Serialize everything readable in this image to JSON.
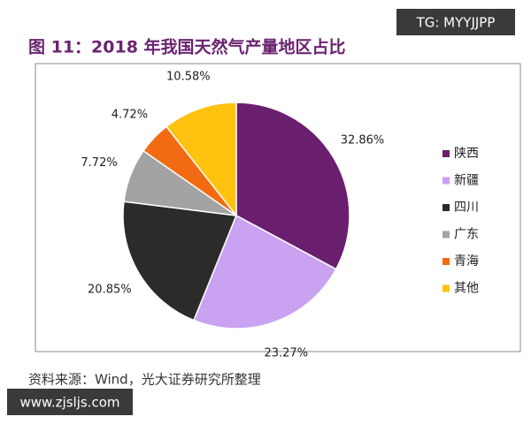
{
  "chart_data": {
    "type": "pie",
    "title": "图 11：2018 年我国天然气产量地区占比",
    "categories": [
      "陕西",
      "新疆",
      "四川",
      "广东",
      "青海",
      "其他"
    ],
    "values": [
      32.86,
      23.27,
      20.85,
      7.72,
      4.72,
      10.58
    ],
    "value_labels": [
      "32.86%",
      "23.27%",
      "20.85%",
      "7.72%",
      "4.72%",
      "10.58%"
    ],
    "colors": [
      "#6a1f6e",
      "#c9a2f2",
      "#2b2b2b",
      "#a3a3a3",
      "#f26b12",
      "#ffc20e"
    ],
    "legend": "right",
    "source": "资料来源：Wind，光大证券研究所整理"
  },
  "watermarks": [
    "TG: MYYJJPP",
    "www.zjsljs.com"
  ]
}
